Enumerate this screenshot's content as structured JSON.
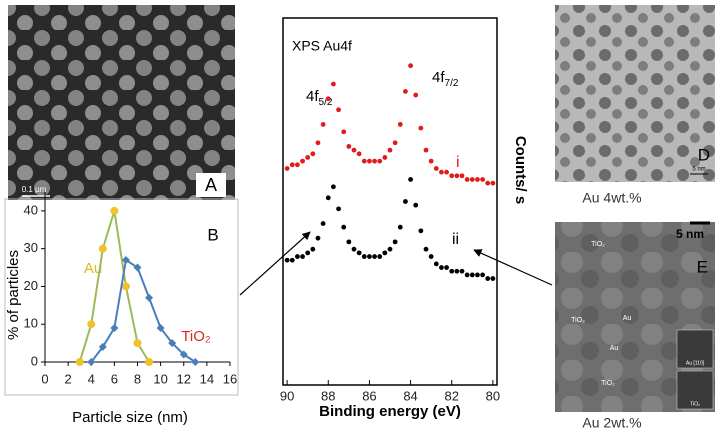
{
  "chart_data": [
    {
      "type": "line",
      "panel_label": "B",
      "x_label": "Particle size (nm)",
      "y_label": "% of particles",
      "xlim": [
        0,
        16
      ],
      "xticks": [
        0,
        2,
        4,
        6,
        8,
        10,
        12,
        14,
        16
      ],
      "ylim": [
        0,
        45
      ],
      "yticks": [
        0,
        10,
        20,
        30,
        40
      ],
      "series": [
        {
          "name": "Au",
          "color": "#9bbb59",
          "marker_color": "#f2c12e",
          "label_color": "#e0b81e",
          "marker": "circle",
          "x": [
            3,
            4,
            5,
            6,
            7,
            8,
            9
          ],
          "values": [
            0,
            10,
            30,
            40,
            20,
            5,
            0
          ]
        },
        {
          "name": "TiO₂",
          "color": "#4a7ebb",
          "marker_color": "#4a7ebb",
          "label_color": "#d62a1e",
          "marker": "diamond",
          "x": [
            4,
            5,
            6,
            7,
            8,
            9,
            10,
            11,
            12,
            13
          ],
          "values": [
            0,
            4,
            9,
            27,
            25,
            17,
            9,
            5,
            2,
            0
          ]
        }
      ]
    },
    {
      "type": "scatter",
      "title": "XPS Au4f",
      "x_label": "Binding energy (eV)",
      "y_label": "Counts/ s",
      "xlim": [
        90.2,
        79.8
      ],
      "xticks": [
        90,
        88,
        86,
        84,
        82,
        80
      ],
      "ylim": [
        0,
        100
      ],
      "peaks": [
        {
          "text": "4f",
          "sub": "5/2"
        },
        {
          "text": "4f",
          "sub": "7/2"
        }
      ],
      "x": [
        90,
        89.75,
        89.5,
        89.25,
        89,
        88.75,
        88.5,
        88.25,
        88,
        87.75,
        87.5,
        87.25,
        87,
        86.75,
        86.5,
        86.25,
        86,
        85.75,
        85.5,
        85.25,
        85,
        84.75,
        84.5,
        84.25,
        84,
        83.75,
        83.5,
        83.25,
        83,
        82.75,
        82.5,
        82.25,
        82,
        81.75,
        81.5,
        81.25,
        81,
        80.75,
        80.5,
        80.25,
        80
      ],
      "series": [
        {
          "name": "i",
          "color": "#e31a1c",
          "values": [
            59,
            60,
            60,
            61,
            62,
            63,
            66,
            71,
            78,
            82,
            75,
            69,
            65,
            64,
            63,
            61,
            61,
            61,
            61,
            62,
            64,
            66,
            71,
            80,
            87,
            79,
            70,
            64,
            61,
            59,
            58,
            58,
            57,
            57,
            57,
            56,
            56,
            56,
            56,
            55,
            55
          ]
        },
        {
          "name": "ii",
          "color": "#000000",
          "values": [
            34,
            34,
            35,
            35,
            36,
            37,
            40,
            44,
            51,
            54,
            48,
            43,
            39,
            37,
            36,
            35,
            35,
            35,
            35,
            36,
            37,
            39,
            43,
            50,
            56,
            49,
            42,
            37,
            35,
            33,
            32,
            32,
            31,
            31,
            31,
            30,
            30,
            30,
            30,
            29,
            29
          ]
        }
      ]
    }
  ],
  "images": {
    "A": {
      "label": "A",
      "scale": "0.1 µm"
    },
    "D": {
      "label": "D",
      "scale": "5 nm",
      "caption": "Au 4wt.%"
    },
    "E": {
      "label": "E",
      "scale": "5 nm",
      "caption": "Au 2wt.%",
      "annotations": [
        "TiO₂",
        "Au",
        "Au",
        "TiO₂",
        "TiO₂"
      ],
      "insets": [
        "Au [110]",
        "TiO₂"
      ]
    }
  }
}
